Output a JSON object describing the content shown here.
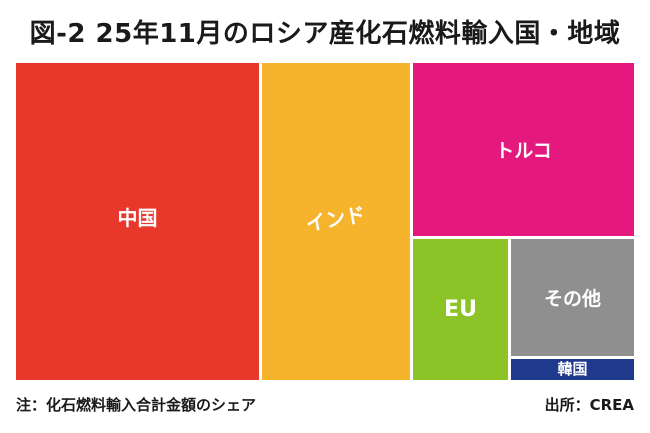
{
  "title": "図-2 25年11月のロシア産化石燃料輸入国・地域",
  "note": "注：化石燃料輸入合計金額のシェア",
  "source": "出所：CREA",
  "colors": {
    "background": "#FFFFFF",
    "text": "#1A1A1A",
    "label_text": "#FFFFFF"
  },
  "chart_data": {
    "type": "treemap",
    "title": "図-2 25年11月のロシア産化石燃料輸入国・地域",
    "metric": "化石燃料輸入合計金額のシェア",
    "note": "注：化石燃料輸入合計金額のシェア",
    "source": "出所：CREA",
    "legend": "none",
    "items": [
      {
        "label": "中国",
        "color": "#E7382B",
        "share_pct_est": 40.0
      },
      {
        "label": "インド",
        "color": "#F6B42D",
        "share_pct_est": 24.0
      },
      {
        "label": "トルコ",
        "color": "#E5187D",
        "share_pct_est": 20.0
      },
      {
        "label": "EU",
        "color": "#8CC327",
        "share_pct_est": 7.0
      },
      {
        "label": "その他",
        "color": "#8F8F8F",
        "share_pct_est": 7.5
      },
      {
        "label": "韓国",
        "color": "#1F398C",
        "share_pct_est": 1.5
      }
    ]
  }
}
